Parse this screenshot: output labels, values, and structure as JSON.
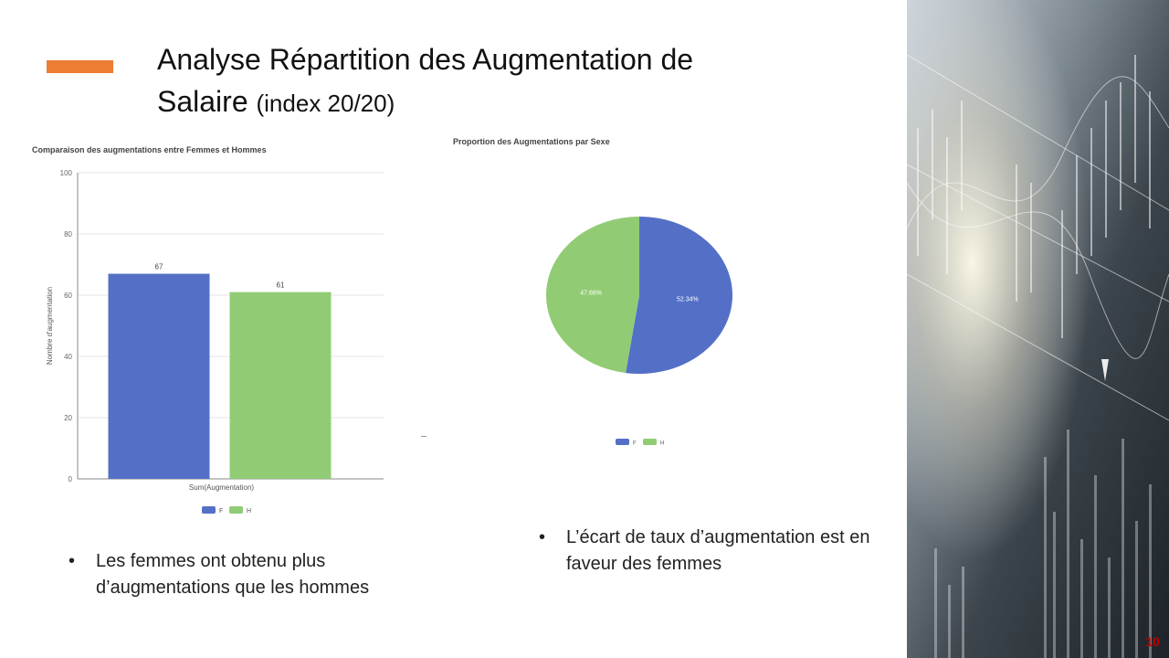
{
  "slide": {
    "title_main": "Analyse  Répartition des Augmentation de Salaire",
    "title_suffix": "(index 20/20)",
    "slide_number": "10",
    "accent_color": "#ED7D31"
  },
  "bullets": {
    "left": "Les femmes ont obtenu plus d’augmentations que les hommes",
    "right": "L’écart de taux d’augmentation est en faveur des femmes",
    "marker": "•"
  },
  "chart_data": [
    {
      "type": "bar",
      "title": "Comparaison des augmentations entre Femmes et Hommes",
      "xlabel": "Sum(Augmentation)",
      "ylabel": "Nombre d'augmentation",
      "ylim": [
        0,
        100
      ],
      "yticks": [
        0,
        20,
        40,
        60,
        80,
        100
      ],
      "grid": true,
      "legend": "bottom",
      "series": [
        {
          "name": "F",
          "values": [
            67
          ],
          "color": "#5470C6"
        },
        {
          "name": "H",
          "values": [
            61
          ],
          "color": "#91CC75"
        }
      ]
    },
    {
      "type": "pie",
      "title": "Proportion des Augmentations par Sexe",
      "legend": "bottom",
      "slices": [
        {
          "name": "F",
          "value": 52.34,
          "label": "52.34%",
          "color": "#5470C6"
        },
        {
          "name": "H",
          "value": 47.66,
          "label": "47.66%",
          "color": "#91CC75"
        }
      ]
    }
  ]
}
